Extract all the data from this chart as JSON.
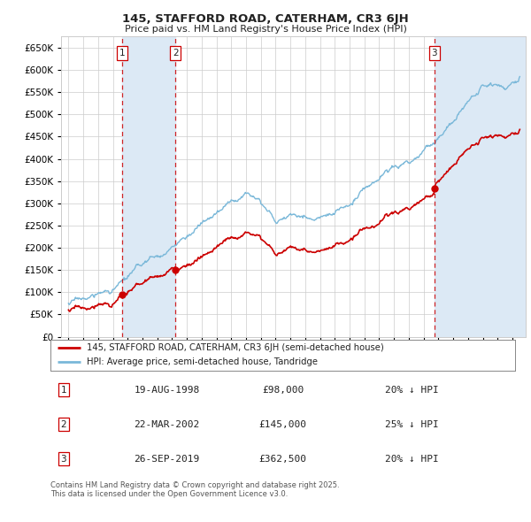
{
  "title": "145, STAFFORD ROAD, CATERHAM, CR3 6JH",
  "subtitle": "Price paid vs. HM Land Registry's House Price Index (HPI)",
  "legend_property": "145, STAFFORD ROAD, CATERHAM, CR3 6JH (semi-detached house)",
  "legend_hpi": "HPI: Average price, semi-detached house, Tandridge",
  "footnote": "Contains HM Land Registry data © Crown copyright and database right 2025.\nThis data is licensed under the Open Government Licence v3.0.",
  "transactions": [
    {
      "num": 1,
      "date": "19-AUG-1998",
      "price": 98000,
      "pct": "20%",
      "dir": "↓",
      "year": 1998.63
    },
    {
      "num": 2,
      "date": "22-MAR-2002",
      "price": 145000,
      "pct": "25%",
      "dir": "↓",
      "year": 2002.22
    },
    {
      "num": 3,
      "date": "26-SEP-2019",
      "price": 362500,
      "pct": "20%",
      "dir": "↓",
      "year": 2019.73
    }
  ],
  "ylim": [
    0,
    675000
  ],
  "yticks": [
    0,
    50000,
    100000,
    150000,
    200000,
    250000,
    300000,
    350000,
    400000,
    450000,
    500000,
    550000,
    600000,
    650000
  ],
  "xlim_start": 1994.5,
  "xlim_end": 2025.9,
  "hpi_color": "#7ab8d9",
  "price_color": "#cc0000",
  "dashed_color": "#cc0000",
  "shade_color": "#dce9f5",
  "background_color": "#ffffff",
  "grid_color": "#cccccc"
}
